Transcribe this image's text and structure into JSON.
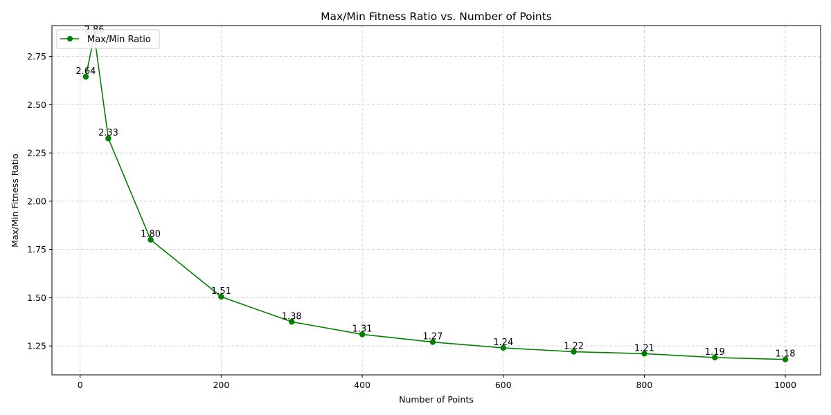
{
  "chart_data": {
    "type": "line",
    "title": "Max/Min Fitness Ratio vs. Number of Points",
    "xlabel": "Number of Points",
    "ylabel": "Max/Min Fitness Ratio",
    "xlim": [
      -40,
      1050
    ],
    "ylim": [
      1.1,
      2.91
    ],
    "xticks": [
      0,
      200,
      400,
      600,
      800,
      1000
    ],
    "xtick_labels": [
      "0",
      "200",
      "400",
      "600",
      "800",
      "1000"
    ],
    "yticks": [
      1.25,
      1.5,
      1.75,
      2.0,
      2.25,
      2.5,
      2.75
    ],
    "ytick_labels": [
      "1.25",
      "1.50",
      "1.75",
      "2.00",
      "2.25",
      "2.50",
      "2.75"
    ],
    "grid": true,
    "legend_position": "upper-left",
    "series": [
      {
        "name": "Max/Min Ratio",
        "color": "#008000",
        "x": [
          8,
          20,
          40,
          100,
          200,
          300,
          400,
          500,
          600,
          700,
          800,
          900,
          1000
        ],
        "y": [
          2.645,
          2.86,
          2.325,
          1.8,
          1.505,
          1.375,
          1.31,
          1.27,
          1.24,
          1.22,
          1.21,
          1.19,
          1.18
        ],
        "labels": [
          "2.64",
          "2.86",
          "2.33",
          "1.80",
          "1.51",
          "1.38",
          "1.31",
          "1.27",
          "1.24",
          "1.22",
          "1.21",
          "1.19",
          "1.18"
        ]
      }
    ]
  }
}
